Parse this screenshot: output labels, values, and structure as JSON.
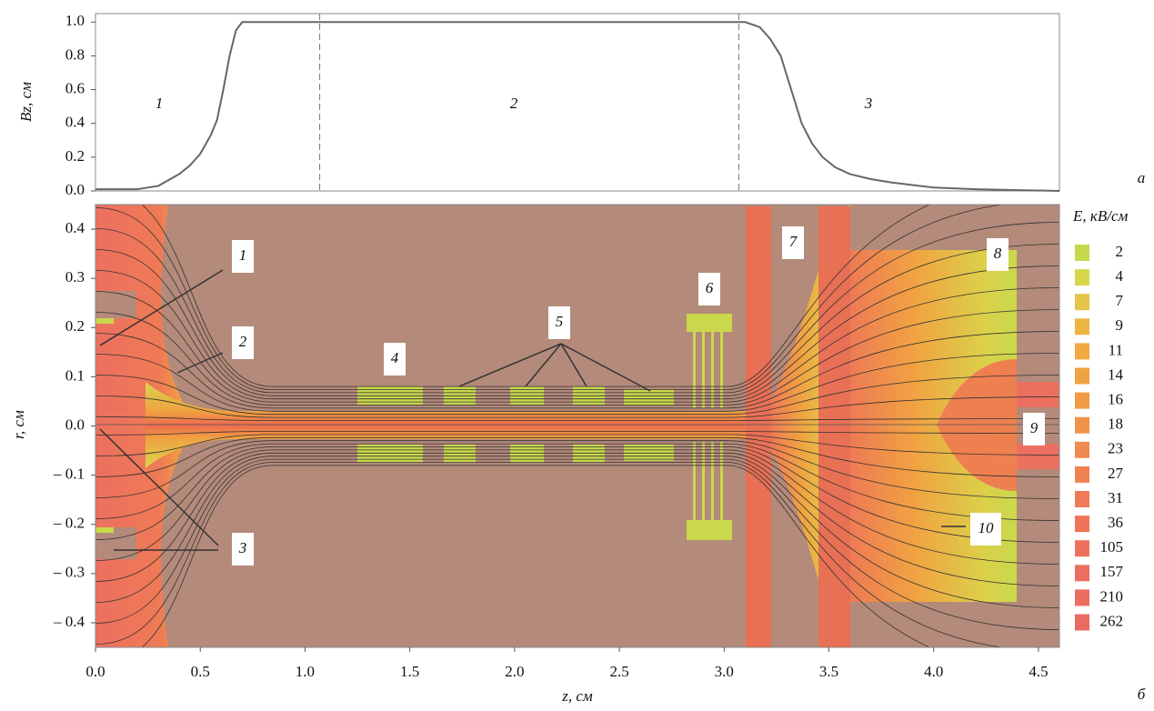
{
  "chart_data": [
    {
      "type": "line",
      "ylabel": "Bz, см",
      "panel_label": "а",
      "region_labels": [
        "1",
        "2",
        "3"
      ],
      "x": [
        0,
        0.2,
        0.3,
        0.4,
        0.45,
        0.5,
        0.55,
        0.58,
        0.61,
        0.64,
        0.67,
        0.7,
        3.0,
        3.1,
        3.17,
        3.22,
        3.27,
        3.32,
        3.37,
        3.42,
        3.47,
        3.53,
        3.6,
        3.7,
        3.8,
        4.0,
        4.2,
        4.6
      ],
      "series": [
        {
          "color": "#666666",
          "values": [
            0.01,
            0.01,
            0.03,
            0.1,
            0.15,
            0.22,
            0.33,
            0.42,
            0.6,
            0.8,
            0.95,
            1.0,
            1.0,
            1.0,
            0.97,
            0.9,
            0.8,
            0.6,
            0.4,
            0.28,
            0.2,
            0.14,
            0.1,
            0.07,
            0.05,
            0.02,
            0.01,
            0.0
          ]
        }
      ],
      "vlines": [
        1.07,
        3.07
      ],
      "xlim": [
        0,
        4.6
      ],
      "ylim": [
        0,
        1.05
      ],
      "yticks": [
        {
          "value": 0,
          "label": "0.0"
        },
        0.2,
        0.4,
        0.6,
        0.8,
        {
          "value": 1,
          "label": "1.0"
        }
      ]
    },
    {
      "type": "field-map",
      "xlabel": "z, см",
      "ylabel": "r, см",
      "panel_label": "б",
      "xlim": [
        0,
        4.6
      ],
      "ylim": [
        -0.45,
        0.45
      ],
      "xticks": [
        {
          "value": 0,
          "label": "0.0"
        },
        0.5,
        {
          "value": 1,
          "label": "1.0"
        },
        1.5,
        {
          "value": 2,
          "label": "2.0"
        },
        2.5,
        {
          "value": 3,
          "label": "3.0"
        },
        3.5,
        {
          "value": 4,
          "label": "4.0"
        },
        4.5
      ],
      "yticks": [
        {
          "value": -0.4,
          "label": "– 0.4"
        },
        {
          "value": -0.3,
          "label": "– 0.3"
        },
        {
          "value": -0.2,
          "label": "– 0.2"
        },
        {
          "value": -0.1,
          "label": "– 0.1"
        },
        {
          "value": 0,
          "label": "0.0"
        },
        0.1,
        0.2,
        0.3,
        0.4
      ],
      "annotations": [
        "1",
        "2",
        "3",
        "4",
        "5",
        "6",
        "7",
        "8",
        "9",
        "10"
      ],
      "legend": {
        "title": "E, кВ/см",
        "levels": [
          2,
          4,
          7,
          9,
          11,
          14,
          16,
          18,
          23,
          27,
          31,
          36,
          105,
          157,
          210,
          262
        ],
        "colors": [
          "#c6d84c",
          "#d6d84a",
          "#e6c44a",
          "#edb442",
          "#f0aa40",
          "#f0a242",
          "#f09a46",
          "#f09248",
          "#f08a4e",
          "#f08252",
          "#f07a56",
          "#f0745a",
          "#ee705e",
          "#ec6e60",
          "#eb6d60",
          "#ea6c60"
        ]
      }
    }
  ]
}
